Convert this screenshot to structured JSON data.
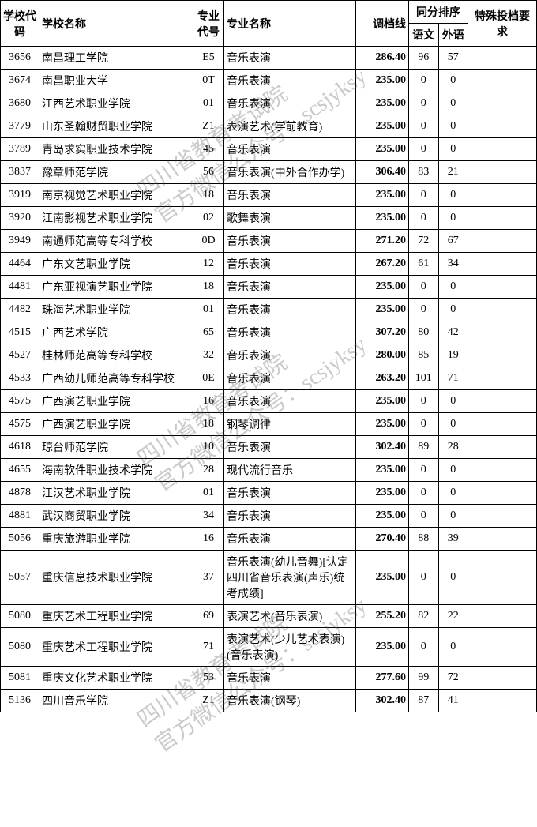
{
  "header": {
    "school_code": "学校代码",
    "school_name": "学校名称",
    "major_code": "专业代号",
    "major_name": "专业名称",
    "score_line": "调档线",
    "same_rank": "同分排序",
    "chinese": "语文",
    "foreign": "外语",
    "special_req": "特殊投档要求"
  },
  "rows": [
    {
      "code": "3656",
      "name": "南昌理工学院",
      "mcode": "E5",
      "mname": "音乐表演",
      "score": "286.40",
      "chn": "96",
      "for": "57",
      "req": ""
    },
    {
      "code": "3674",
      "name": "南昌职业大学",
      "mcode": "0T",
      "mname": "音乐表演",
      "score": "235.00",
      "chn": "0",
      "for": "0",
      "req": ""
    },
    {
      "code": "3680",
      "name": "江西艺术职业学院",
      "mcode": "01",
      "mname": "音乐表演",
      "score": "235.00",
      "chn": "0",
      "for": "0",
      "req": ""
    },
    {
      "code": "3779",
      "name": "山东圣翰财贸职业学院",
      "mcode": "Z1",
      "mname": "表演艺术(学前教育)",
      "score": "235.00",
      "chn": "0",
      "for": "0",
      "req": ""
    },
    {
      "code": "3789",
      "name": "青岛求实职业技术学院",
      "mcode": "45",
      "mname": "音乐表演",
      "score": "235.00",
      "chn": "0",
      "for": "0",
      "req": ""
    },
    {
      "code": "3837",
      "name": "豫章师范学院",
      "mcode": "56",
      "mname": "音乐表演(中外合作办学)",
      "score": "306.40",
      "chn": "83",
      "for": "21",
      "req": ""
    },
    {
      "code": "3919",
      "name": "南京视觉艺术职业学院",
      "mcode": "18",
      "mname": "音乐表演",
      "score": "235.00",
      "chn": "0",
      "for": "0",
      "req": ""
    },
    {
      "code": "3920",
      "name": "江南影视艺术职业学院",
      "mcode": "02",
      "mname": "歌舞表演",
      "score": "235.00",
      "chn": "0",
      "for": "0",
      "req": ""
    },
    {
      "code": "3949",
      "name": "南通师范高等专科学校",
      "mcode": "0D",
      "mname": "音乐表演",
      "score": "271.20",
      "chn": "72",
      "for": "67",
      "req": ""
    },
    {
      "code": "4464",
      "name": "广东文艺职业学院",
      "mcode": "12",
      "mname": "音乐表演",
      "score": "267.20",
      "chn": "61",
      "for": "34",
      "req": ""
    },
    {
      "code": "4481",
      "name": "广东亚视演艺职业学院",
      "mcode": "18",
      "mname": "音乐表演",
      "score": "235.00",
      "chn": "0",
      "for": "0",
      "req": ""
    },
    {
      "code": "4482",
      "name": "珠海艺术职业学院",
      "mcode": "01",
      "mname": "音乐表演",
      "score": "235.00",
      "chn": "0",
      "for": "0",
      "req": ""
    },
    {
      "code": "4515",
      "name": "广西艺术学院",
      "mcode": "65",
      "mname": "音乐表演",
      "score": "307.20",
      "chn": "80",
      "for": "42",
      "req": ""
    },
    {
      "code": "4527",
      "name": "桂林师范高等专科学校",
      "mcode": "32",
      "mname": "音乐表演",
      "score": "280.00",
      "chn": "85",
      "for": "19",
      "req": ""
    },
    {
      "code": "4533",
      "name": "广西幼儿师范高等专科学校",
      "mcode": "0E",
      "mname": "音乐表演",
      "score": "263.20",
      "chn": "101",
      "for": "71",
      "req": ""
    },
    {
      "code": "4575",
      "name": "广西演艺职业学院",
      "mcode": "16",
      "mname": "音乐表演",
      "score": "235.00",
      "chn": "0",
      "for": "0",
      "req": ""
    },
    {
      "code": "4575",
      "name": "广西演艺职业学院",
      "mcode": "18",
      "mname": "钢琴调律",
      "score": "235.00",
      "chn": "0",
      "for": "0",
      "req": ""
    },
    {
      "code": "4618",
      "name": "琼台师范学院",
      "mcode": "10",
      "mname": "音乐表演",
      "score": "302.40",
      "chn": "89",
      "for": "28",
      "req": ""
    },
    {
      "code": "4655",
      "name": "海南软件职业技术学院",
      "mcode": "28",
      "mname": "现代流行音乐",
      "score": "235.00",
      "chn": "0",
      "for": "0",
      "req": ""
    },
    {
      "code": "4878",
      "name": "江汉艺术职业学院",
      "mcode": "01",
      "mname": "音乐表演",
      "score": "235.00",
      "chn": "0",
      "for": "0",
      "req": ""
    },
    {
      "code": "4881",
      "name": "武汉商贸职业学院",
      "mcode": "34",
      "mname": "音乐表演",
      "score": "235.00",
      "chn": "0",
      "for": "0",
      "req": ""
    },
    {
      "code": "5056",
      "name": "重庆旅游职业学院",
      "mcode": "16",
      "mname": "音乐表演",
      "score": "270.40",
      "chn": "88",
      "for": "39",
      "req": ""
    },
    {
      "code": "5057",
      "name": "重庆信息技术职业学院",
      "mcode": "37",
      "mname": "音乐表演(幼儿音舞)[认定四川省音乐表演(声乐)统考成绩]",
      "score": "235.00",
      "chn": "0",
      "for": "0",
      "req": ""
    },
    {
      "code": "5080",
      "name": "重庆艺术工程职业学院",
      "mcode": "69",
      "mname": "表演艺术(音乐表演)",
      "score": "255.20",
      "chn": "82",
      "for": "22",
      "req": ""
    },
    {
      "code": "5080",
      "name": "重庆艺术工程职业学院",
      "mcode": "71",
      "mname": "表演艺术(少儿艺术表演)(音乐表演)",
      "score": "235.00",
      "chn": "0",
      "for": "0",
      "req": ""
    },
    {
      "code": "5081",
      "name": "重庆文化艺术职业学院",
      "mcode": "53",
      "mname": "音乐表演",
      "score": "277.60",
      "chn": "99",
      "for": "72",
      "req": ""
    },
    {
      "code": "5136",
      "name": "四川音乐学院",
      "mcode": "Z1",
      "mname": "音乐表演(钢琴)",
      "score": "302.40",
      "chn": "87",
      "for": "41",
      "req": ""
    }
  ],
  "watermark": {
    "line1": "四川省教育考试院",
    "line2": "官方微信公众号：scsjyksy"
  }
}
